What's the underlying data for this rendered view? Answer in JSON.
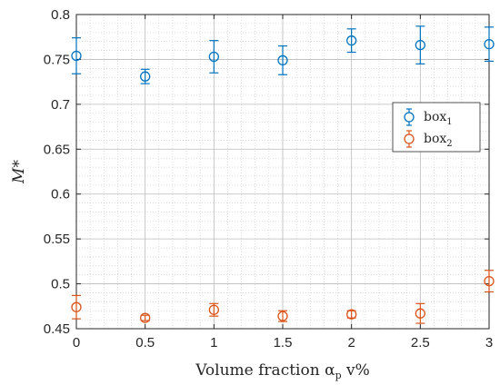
{
  "chart_data": {
    "type": "scatter",
    "error_bars": true,
    "xlabel": "Volume fraction α",
    "xlabel_sub": "p",
    "xlabel_tail": " v%",
    "ylabel": "M*",
    "xlim": [
      0,
      3
    ],
    "ylim": [
      0.45,
      0.8
    ],
    "grid": true,
    "minor_grid": true,
    "legend_placement": "right",
    "x_ticks": [
      "0",
      "0.5",
      "1",
      "1.5",
      "2",
      "2.5",
      "3"
    ],
    "y_ticks": [
      "0.45",
      "0.5",
      "0.55",
      "0.6",
      "0.65",
      "0.7",
      "0.75",
      "0.8"
    ],
    "series": [
      {
        "name": "box",
        "name_sub": "1",
        "color": "#0072BD",
        "x": [
          0,
          0.5,
          1,
          1.5,
          2,
          2.5,
          3
        ],
        "y": [
          0.754,
          0.731,
          0.753,
          0.749,
          0.771,
          0.766,
          0.767
        ],
        "err_low": [
          0.02,
          0.008,
          0.018,
          0.016,
          0.013,
          0.021,
          0.019
        ],
        "err_high": [
          0.02,
          0.008,
          0.018,
          0.016,
          0.013,
          0.021,
          0.019
        ]
      },
      {
        "name": "box",
        "name_sub": "2",
        "color": "#D95319",
        "x": [
          0,
          0.5,
          1,
          1.5,
          2,
          2.5,
          3
        ],
        "y": [
          0.474,
          0.462,
          0.471,
          0.464,
          0.466,
          0.467,
          0.503
        ],
        "err_low": [
          0.013,
          0.003,
          0.007,
          0.006,
          0.004,
          0.011,
          0.012
        ],
        "err_high": [
          0.013,
          0.003,
          0.007,
          0.006,
          0.004,
          0.011,
          0.012
        ]
      }
    ]
  }
}
